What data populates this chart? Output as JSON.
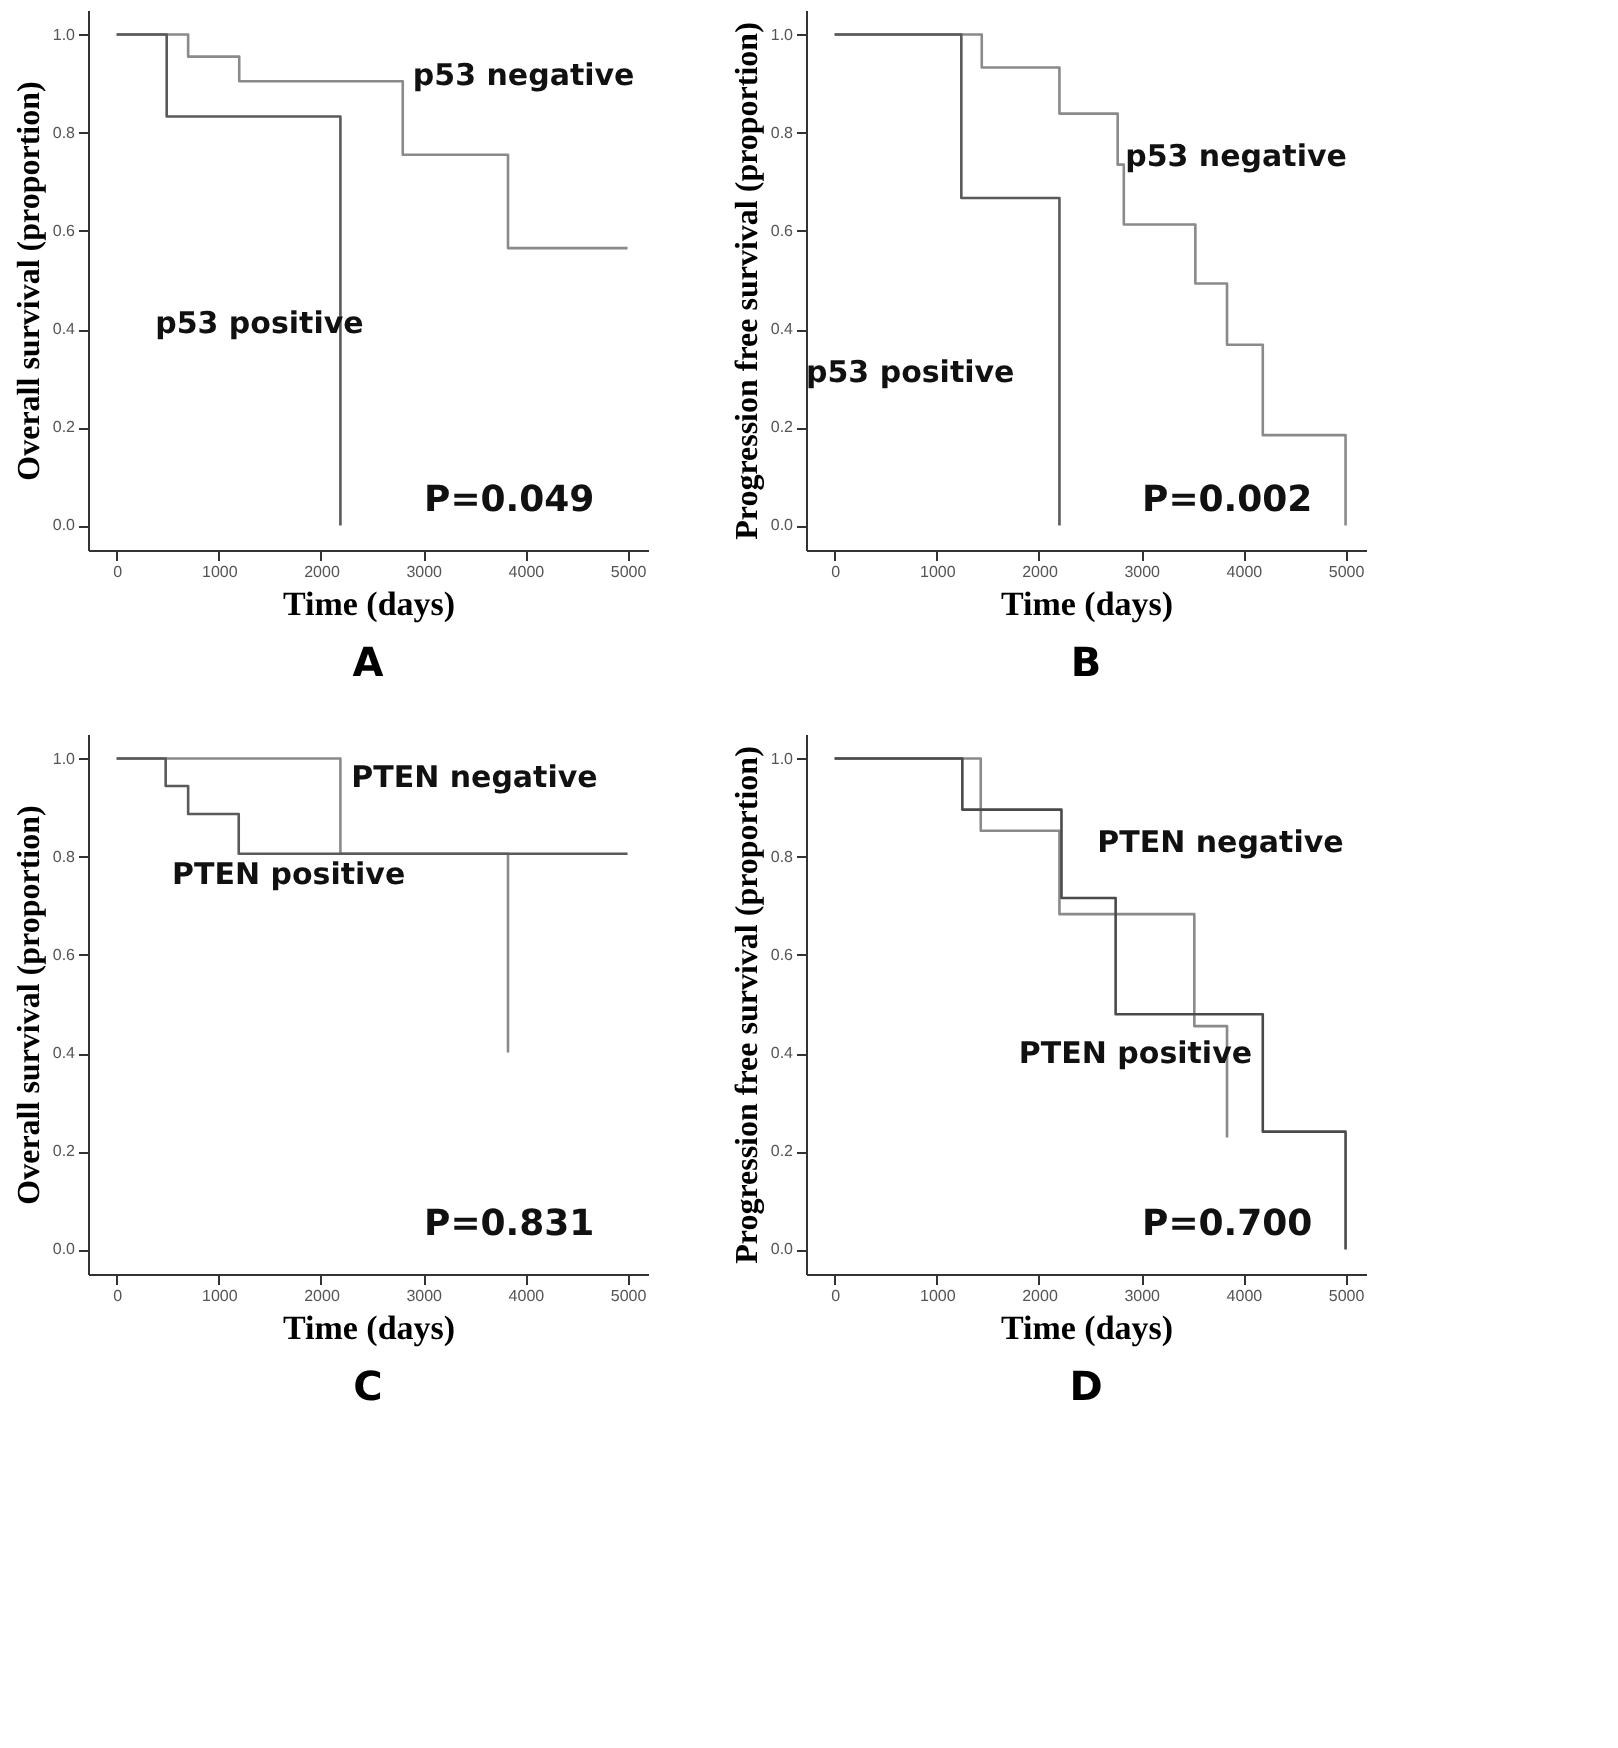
{
  "chart_data": [
    {
      "type": "step",
      "title": "A",
      "xlabel": "Time (days)",
      "ylabel": "Overall survival (proportion)",
      "xlim": [
        -280,
        5200
      ],
      "ylim": [
        -0.05,
        1.05
      ],
      "xticks": [
        0,
        1000,
        2000,
        3000,
        4000,
        5000
      ],
      "yticks": [
        {
          "value": 0,
          "label": "0.0"
        },
        {
          "value": 0.2,
          "label": "0.2"
        },
        {
          "value": 0.4,
          "label": "0.4"
        },
        {
          "value": 0.6,
          "label": "0.6"
        },
        {
          "value": 0.8,
          "label": "0.8"
        },
        {
          "value": 1,
          "label": "1.0"
        }
      ],
      "annotations": [
        "P=0.049"
      ],
      "series": [
        {
          "name": "p53 negative",
          "color": "#8a8a8a",
          "x": [
            0,
            700,
            1200,
            2800,
            3830,
            5000
          ],
          "values": [
            1,
            0.955,
            0.905,
            0.755,
            0.565,
            0.565
          ]
        },
        {
          "name": "p53 positive",
          "color": "#5a5a5a",
          "x": [
            0,
            490,
            2190
          ],
          "values": [
            1,
            0.833,
            0
          ]
        }
      ]
    },
    {
      "type": "step",
      "title": "B",
      "xlabel": "Time (days)",
      "ylabel": "Progression free survival (proportion)",
      "xlim": [
        -280,
        5200
      ],
      "ylim": [
        -0.05,
        1.05
      ],
      "xticks": [
        0,
        1000,
        2000,
        3000,
        4000,
        5000
      ],
      "yticks": [
        {
          "value": 0,
          "label": "0.0"
        },
        {
          "value": 0.2,
          "label": "0.2"
        },
        {
          "value": 0.4,
          "label": "0.4"
        },
        {
          "value": 0.6,
          "label": "0.6"
        },
        {
          "value": 0.8,
          "label": "0.8"
        },
        {
          "value": 1,
          "label": "1.0"
        }
      ],
      "annotations": [
        "P=0.002"
      ],
      "series": [
        {
          "name": "p53 negative",
          "color": "#8a8a8a",
          "x": [
            0,
            1440,
            2200,
            2770,
            2830,
            3530,
            3840,
            4190,
            5000
          ],
          "values": [
            1,
            0.933,
            0.839,
            0.735,
            0.613,
            0.493,
            0.368,
            0.184,
            0
          ]
        },
        {
          "name": "p53 positive",
          "color": "#5a5a5a",
          "x": [
            0,
            1240,
            2200
          ],
          "values": [
            1,
            0.667,
            0
          ]
        }
      ]
    },
    {
      "type": "step",
      "title": "C",
      "xlabel": "Time (days)",
      "ylabel": "Overall survival (proportion)",
      "xlim": [
        -280,
        5200
      ],
      "ylim": [
        -0.05,
        1.05
      ],
      "xticks": [
        0,
        1000,
        2000,
        3000,
        4000,
        5000
      ],
      "yticks": [
        {
          "value": 0,
          "label": "0.0"
        },
        {
          "value": 0.2,
          "label": "0.2"
        },
        {
          "value": 0.4,
          "label": "0.4"
        },
        {
          "value": 0.6,
          "label": "0.6"
        },
        {
          "value": 0.8,
          "label": "0.8"
        },
        {
          "value": 1,
          "label": "1.0"
        }
      ],
      "annotations": [
        "P=0.831"
      ],
      "series": [
        {
          "name": "PTEN negative",
          "color": "#8a8a8a",
          "x": [
            0,
            2190,
            3830
          ],
          "values": [
            1,
            0.806,
            0.401
          ]
        },
        {
          "name": "PTEN positive",
          "color": "#5a5a5a",
          "x": [
            0,
            480,
            700,
            1195,
            5000
          ],
          "values": [
            1,
            0.944,
            0.887,
            0.806,
            0.806
          ]
        }
      ]
    },
    {
      "type": "step",
      "title": "D",
      "xlabel": "Time (days)",
      "ylabel": "Progression free survival (proportion)",
      "xlim": [
        -280,
        5200
      ],
      "ylim": [
        -0.05,
        1.05
      ],
      "xticks": [
        0,
        1000,
        2000,
        3000,
        4000,
        5000
      ],
      "yticks": [
        {
          "value": 0,
          "label": "0.0"
        },
        {
          "value": 0.2,
          "label": "0.2"
        },
        {
          "value": 0.4,
          "label": "0.4"
        },
        {
          "value": 0.6,
          "label": "0.6"
        },
        {
          "value": 0.8,
          "label": "0.8"
        },
        {
          "value": 1,
          "label": "1.0"
        }
      ],
      "annotations": [
        "P=0.700"
      ],
      "series": [
        {
          "name": "PTEN negative",
          "color": "#8a8a8a",
          "x": [
            0,
            1430,
            2200,
            3520,
            3840
          ],
          "values": [
            1,
            0.853,
            0.683,
            0.455,
            0.228
          ]
        },
        {
          "name": "PTEN positive",
          "color": "#4a4a4a",
          "x": [
            0,
            1250,
            2220,
            2750,
            4190,
            5000
          ],
          "values": [
            1,
            0.896,
            0.716,
            0.479,
            0.24,
            0
          ]
        }
      ]
    }
  ]
}
